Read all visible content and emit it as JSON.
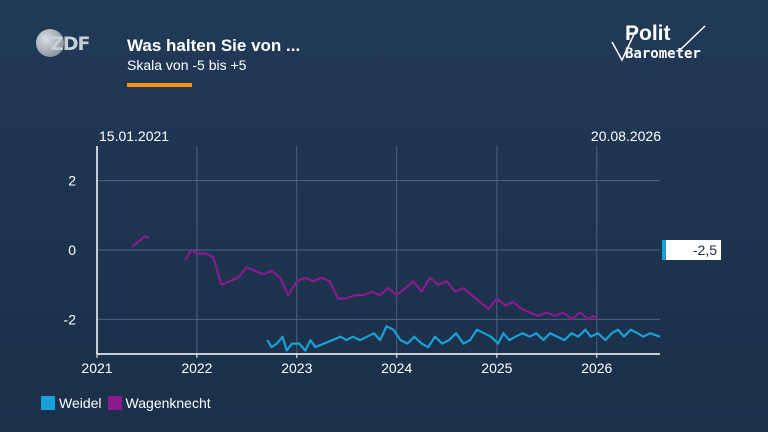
{
  "header": {
    "title": "Was halten Sie von ...",
    "subtitle": "Skala von -5 bis +5",
    "accent_color": "#f7921e"
  },
  "logos": {
    "zdf": "ZDF",
    "polit_line1": "Polit",
    "polit_line2": "Barometer"
  },
  "chart_data": {
    "type": "line",
    "date_range": {
      "start": "15.01.2021",
      "end": "20.08.2026"
    },
    "x_ticks": [
      "2021",
      "2022",
      "2023",
      "2024",
      "2025",
      "2026"
    ],
    "y_ticks": [
      "2",
      "0",
      "-2"
    ],
    "ylim": [
      -3,
      3
    ],
    "grid": true,
    "latest_value_label": "-2,5",
    "legend_position": "bottom-left",
    "series": [
      {
        "name": "Weidel",
        "color": "#1aa0d8",
        "points": [
          [
            "2022-09-15",
            -2.6
          ],
          [
            "2022-10-01",
            -2.8
          ],
          [
            "2022-10-20",
            -2.7
          ],
          [
            "2022-11-10",
            -2.5
          ],
          [
            "2022-11-25",
            -2.9
          ],
          [
            "2022-12-15",
            -2.7
          ],
          [
            "2023-01-10",
            -2.7
          ],
          [
            "2023-02-01",
            -2.9
          ],
          [
            "2023-02-20",
            -2.6
          ],
          [
            "2023-03-10",
            -2.8
          ],
          [
            "2023-06-10",
            -2.5
          ],
          [
            "2023-07-01",
            -2.6
          ],
          [
            "2023-07-25",
            -2.5
          ],
          [
            "2023-08-20",
            -2.6
          ],
          [
            "2023-09-15",
            -2.5
          ],
          [
            "2023-10-10",
            -2.4
          ],
          [
            "2023-11-01",
            -2.6
          ],
          [
            "2023-11-25",
            -2.2
          ],
          [
            "2023-12-20",
            -2.3
          ],
          [
            "2024-01-15",
            -2.6
          ],
          [
            "2024-02-10",
            -2.7
          ],
          [
            "2024-03-05",
            -2.5
          ],
          [
            "2024-04-01",
            -2.7
          ],
          [
            "2024-04-25",
            -2.8
          ],
          [
            "2024-05-20",
            -2.5
          ],
          [
            "2024-06-15",
            -2.7
          ],
          [
            "2024-07-10",
            -2.6
          ],
          [
            "2024-08-05",
            -2.4
          ],
          [
            "2024-09-01",
            -2.7
          ],
          [
            "2024-09-25",
            -2.6
          ],
          [
            "2024-10-20",
            -2.3
          ],
          [
            "2024-11-15",
            -2.4
          ],
          [
            "2024-12-10",
            -2.5
          ],
          [
            "2025-01-05",
            -2.7
          ],
          [
            "2025-01-25",
            -2.4
          ],
          [
            "2025-02-15",
            -2.6
          ],
          [
            "2025-03-10",
            -2.5
          ],
          [
            "2025-04-05",
            -2.4
          ],
          [
            "2025-05-01",
            -2.5
          ],
          [
            "2025-05-25",
            -2.4
          ],
          [
            "2025-06-20",
            -2.6
          ],
          [
            "2025-07-15",
            -2.4
          ],
          [
            "2025-08-10",
            -2.5
          ],
          [
            "2025-09-05",
            -2.6
          ],
          [
            "2025-10-01",
            -2.4
          ],
          [
            "2025-10-25",
            -2.5
          ],
          [
            "2025-11-20",
            -2.3
          ],
          [
            "2025-12-10",
            -2.5
          ],
          [
            "2026-01-05",
            -2.4
          ],
          [
            "2026-02-01",
            -2.6
          ],
          [
            "2026-02-25",
            -2.4
          ],
          [
            "2026-03-20",
            -2.3
          ],
          [
            "2026-04-10",
            -2.5
          ],
          [
            "2026-05-05",
            -2.3
          ],
          [
            "2026-05-30",
            -2.4
          ],
          [
            "2026-06-20",
            -2.5
          ],
          [
            "2026-07-15",
            -2.4
          ],
          [
            "2026-08-20",
            -2.5
          ]
        ]
      },
      {
        "name": "Wagenknecht",
        "color": "#8b1a8f",
        "points": [
          [
            "2021-05-10",
            0.1
          ],
          [
            "2021-05-25",
            0.2
          ],
          [
            "2021-06-10",
            0.3
          ],
          [
            "2021-06-25",
            0.4
          ],
          [
            "2021-07-10",
            0.35
          ],
          [
            "2021-11-20",
            -0.3
          ],
          [
            "2021-12-10",
            0.0
          ],
          [
            "2022-01-05",
            -0.1
          ],
          [
            "2022-02-01",
            -0.1
          ],
          [
            "2022-03-01",
            -0.2
          ],
          [
            "2022-04-01",
            -1.0
          ],
          [
            "2022-05-01",
            -0.9
          ],
          [
            "2022-06-01",
            -0.8
          ],
          [
            "2022-07-01",
            -0.5
          ],
          [
            "2022-08-01",
            -0.6
          ],
          [
            "2022-09-01",
            -0.7
          ],
          [
            "2022-10-01",
            -0.6
          ],
          [
            "2022-11-01",
            -0.8
          ],
          [
            "2022-12-01",
            -1.3
          ],
          [
            "2023-01-01",
            -0.9
          ],
          [
            "2023-02-01",
            -0.8
          ],
          [
            "2023-03-01",
            -0.9
          ],
          [
            "2023-04-01",
            -0.8
          ],
          [
            "2023-05-01",
            -0.9
          ],
          [
            "2023-06-01",
            -1.4
          ],
          [
            "2023-07-01",
            -1.4
          ],
          [
            "2023-08-01",
            -1.3
          ],
          [
            "2023-09-01",
            -1.3
          ],
          [
            "2023-10-01",
            -1.2
          ],
          [
            "2023-11-01",
            -1.3
          ],
          [
            "2023-12-01",
            -1.1
          ],
          [
            "2024-01-01",
            -1.3
          ],
          [
            "2024-02-01",
            -1.1
          ],
          [
            "2024-03-01",
            -0.9
          ],
          [
            "2024-04-01",
            -1.2
          ],
          [
            "2024-05-01",
            -0.8
          ],
          [
            "2024-06-01",
            -1.0
          ],
          [
            "2024-07-01",
            -0.9
          ],
          [
            "2024-08-01",
            -1.2
          ],
          [
            "2024-09-01",
            -1.1
          ],
          [
            "2024-10-01",
            -1.3
          ],
          [
            "2024-11-01",
            -1.5
          ],
          [
            "2024-12-01",
            -1.7
          ],
          [
            "2025-01-01",
            -1.4
          ],
          [
            "2025-02-01",
            -1.6
          ],
          [
            "2025-03-01",
            -1.5
          ],
          [
            "2025-04-01",
            -1.7
          ],
          [
            "2025-05-01",
            -1.8
          ],
          [
            "2025-06-01",
            -1.9
          ],
          [
            "2025-07-01",
            -1.8
          ],
          [
            "2025-08-01",
            -1.9
          ],
          [
            "2025-09-01",
            -1.8
          ],
          [
            "2025-10-01",
            -2.0
          ],
          [
            "2025-11-01",
            -1.8
          ],
          [
            "2025-12-01",
            -2.0
          ],
          [
            "2025-12-20",
            -1.9
          ],
          [
            "2026-01-05",
            -2.0
          ]
        ]
      }
    ]
  },
  "legend": {
    "items": [
      {
        "label": "Weidel",
        "color": "#1aa0d8"
      },
      {
        "label": "Wagenknecht",
        "color": "#8b1a8f"
      }
    ]
  }
}
